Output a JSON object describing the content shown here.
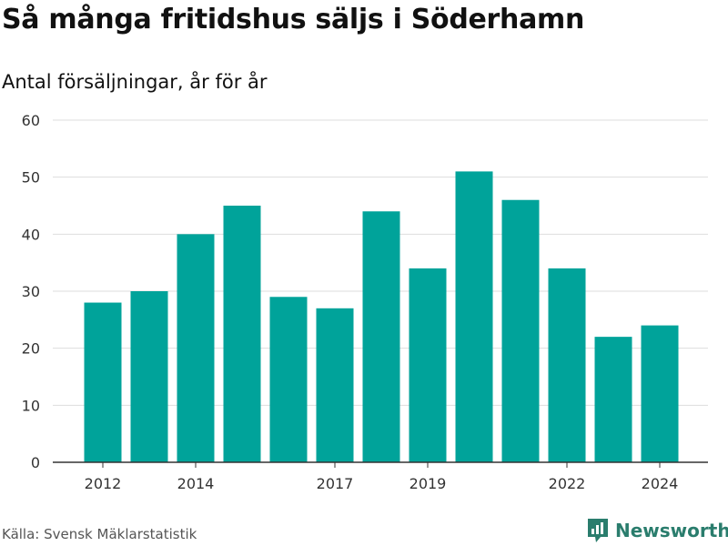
{
  "title": "Så många fritidshus säljs i Söderhamn",
  "subtitle": "Antal försäljningar, år för år",
  "source": "Källa: Svensk Mäklarstatistik",
  "brand": {
    "name": "Newsworthy",
    "icon": "bar-chart-logo-icon",
    "color": "#2a7d6d"
  },
  "colors": {
    "bar": "#00a39a",
    "grid": "#dddddd",
    "axis": "#333333"
  },
  "chart_data": {
    "type": "bar",
    "title": "Så många fritidshus säljs i Söderhamn",
    "subtitle": "Antal försäljningar, år för år",
    "xlabel": "",
    "ylabel": "",
    "categories": [
      "2012",
      "2013",
      "2014",
      "2015",
      "2016",
      "2017",
      "2018",
      "2019",
      "2020",
      "2021",
      "2022",
      "2023",
      "2024"
    ],
    "values": [
      28,
      30,
      40,
      45,
      29,
      27,
      44,
      34,
      51,
      46,
      34,
      22,
      24
    ],
    "x_tick_labels": [
      "2012",
      "2014",
      "2017",
      "2019",
      "2022",
      "2024"
    ],
    "ylim": [
      0,
      60
    ],
    "y_ticks": [
      0,
      10,
      20,
      30,
      40,
      50,
      60
    ],
    "grid": true,
    "legend": "none"
  }
}
